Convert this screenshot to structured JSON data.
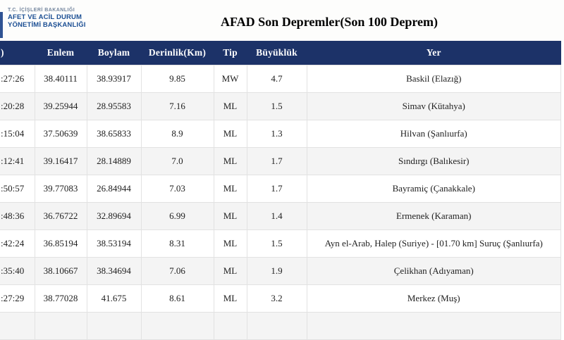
{
  "logo": {
    "line1": "T.C. İÇİŞLERİ BAKANLIĞI",
    "line2": "AFET VE ACİL DURUM",
    "line3": "YÖNETİMİ BAŞKANLIĞI"
  },
  "title": "AFAD Son Depremler(Son 100 Deprem)",
  "table": {
    "columns": [
      ")",
      "Enlem",
      "Boylam",
      "Derinlik(Km)",
      "Tip",
      "Büyüklük",
      "Yer"
    ],
    "rows": [
      [
        ":27:26",
        "38.40111",
        "38.93917",
        "9.85",
        "MW",
        "4.7",
        "Baskil (Elazığ)"
      ],
      [
        ":20:28",
        "39.25944",
        "28.95583",
        "7.16",
        "ML",
        "1.5",
        "Simav (Kütahya)"
      ],
      [
        ":15:04",
        "37.50639",
        "38.65833",
        "8.9",
        "ML",
        "1.3",
        "Hilvan (Şanlıurfa)"
      ],
      [
        ":12:41",
        "39.16417",
        "28.14889",
        "7.0",
        "ML",
        "1.7",
        "Sındırgı (Balıkesir)"
      ],
      [
        ":50:57",
        "39.77083",
        "26.84944",
        "7.03",
        "ML",
        "1.7",
        "Bayramiç (Çanakkale)"
      ],
      [
        ":48:36",
        "36.76722",
        "32.89694",
        "6.99",
        "ML",
        "1.4",
        "Ermenek (Karaman)"
      ],
      [
        ":42:24",
        "36.85194",
        "38.53194",
        "8.31",
        "ML",
        "1.5",
        "Ayn el-Arab, Halep (Suriye) - [01.70 km] Suruç (Şanlıurfa)"
      ],
      [
        ":35:40",
        "38.10667",
        "38.34694",
        "7.06",
        "ML",
        "1.9",
        "Çelikhan (Adıyaman)"
      ],
      [
        ":27:29",
        "38.77028",
        "41.675",
        "8.61",
        "ML",
        "3.2",
        "Merkez (Muş)"
      ]
    ],
    "partial_next_row": true
  },
  "colors": {
    "header_bg": "#1c3268",
    "row_alt_bg": "#f4f4f4",
    "logo_bold_blue": "#1c4f94",
    "logo_muted_blue": "#74869e",
    "logo_accent_bar": "#2f5394",
    "cell_border": "#e2e2e2"
  }
}
